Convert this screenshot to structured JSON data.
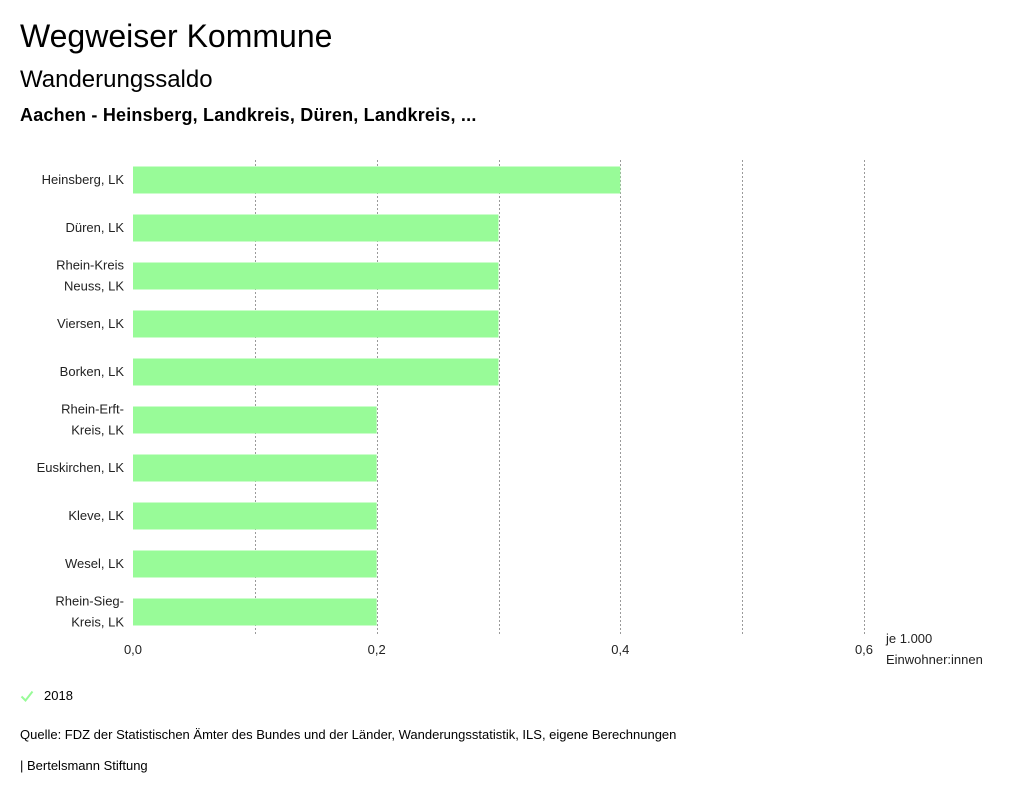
{
  "header": {
    "title": "Wegweiser Kommune",
    "subtitle": "Wanderungssaldo",
    "region": "Aachen - Heinsberg, Landkreis, Düren, Landkreis, ..."
  },
  "chart_data": {
    "type": "bar",
    "orientation": "horizontal",
    "categories": [
      [
        "Heinsberg, LK"
      ],
      [
        "Düren, LK"
      ],
      [
        "Rhein-Kreis",
        "Neuss, LK"
      ],
      [
        "Viersen, LK"
      ],
      [
        "Borken, LK"
      ],
      [
        "Rhein-Erft-",
        "Kreis, LK"
      ],
      [
        "Euskirchen, LK"
      ],
      [
        "Kleve, LK"
      ],
      [
        "Wesel, LK"
      ],
      [
        "Rhein-Sieg-",
        "Kreis, LK"
      ]
    ],
    "series": [
      {
        "name": "2018",
        "values": [
          0.4,
          0.3,
          0.3,
          0.3,
          0.3,
          0.2,
          0.2,
          0.2,
          0.2,
          0.2
        ]
      }
    ],
    "xlim": [
      0,
      0.6
    ],
    "grid_values": [
      0,
      0.1,
      0.2,
      0.3,
      0.4,
      0.5,
      0.6
    ],
    "tick_values": [
      0,
      0.2,
      0.4,
      0.6
    ],
    "tick_labels": [
      "0,0",
      "0,2",
      "0,4",
      "0,6"
    ],
    "unit_label": [
      "je 1.000",
      "Einwohner:innen"
    ],
    "bar_color": "#98fb98",
    "grid": true
  },
  "legend": {
    "label": "2018",
    "color": "#98fb98"
  },
  "footer": {
    "source": "Quelle: FDZ der Statistischen Ämter des Bundes und der Länder, Wanderungsstatistik, ILS, eigene Berechnungen",
    "credit": "| Bertelsmann Stiftung"
  }
}
